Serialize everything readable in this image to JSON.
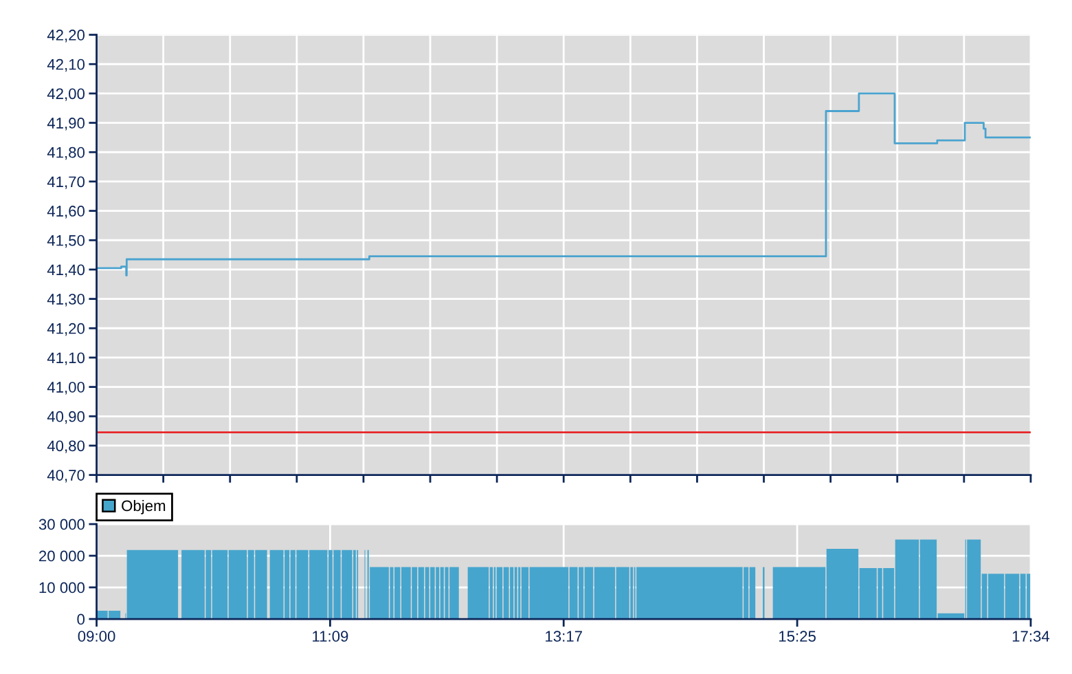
{
  "chart_data": [
    {
      "type": "step",
      "series": [
        {
          "color": "#4aa3cf",
          "x": [
            9.0,
            9.226,
            9.272,
            9.276,
            11.501,
            15.689,
            15.991,
            16.319,
            16.709,
            16.962,
            17.135,
            17.152,
            17.5667
          ],
          "values": [
            41.405,
            41.41,
            41.38,
            41.435,
            41.445,
            41.94,
            42.0,
            41.83,
            41.84,
            41.9,
            41.88,
            41.85,
            41.85
          ]
        }
      ],
      "xlim": [
        9.0,
        17.5667
      ],
      "xticks": [
        {
          "value": 9.0,
          "label": null
        },
        {
          "value": 9.6119,
          "label": null
        },
        {
          "value": 10.2238,
          "label": null
        },
        {
          "value": 10.8357,
          "label": null
        },
        {
          "value": 11.4476,
          "label": null
        },
        {
          "value": 12.0595,
          "label": null
        },
        {
          "value": 12.6714,
          "label": null
        },
        {
          "value": 13.2833,
          "label": null
        },
        {
          "value": 13.8952,
          "label": null
        },
        {
          "value": 14.5071,
          "label": null
        },
        {
          "value": 15.119,
          "label": null
        },
        {
          "value": 15.731,
          "label": null
        },
        {
          "value": 16.3429,
          "label": null
        },
        {
          "value": 16.9548,
          "label": null
        },
        {
          "value": 17.5667,
          "label": null
        }
      ],
      "ylim": [
        40.7,
        42.2
      ],
      "yticks": [
        {
          "value": 40.7,
          "label": "40,70"
        },
        {
          "value": 40.8,
          "label": "40,80"
        },
        {
          "value": 40.9,
          "label": "40,90"
        },
        {
          "value": 41.0,
          "label": "41,00"
        },
        {
          "value": 41.1,
          "label": "41,10"
        },
        {
          "value": 41.2,
          "label": "41,20"
        },
        {
          "value": 41.3,
          "label": "41,30"
        },
        {
          "value": 41.4,
          "label": "41,40"
        },
        {
          "value": 41.5,
          "label": "41,50"
        },
        {
          "value": 41.6,
          "label": "41,60"
        },
        {
          "value": 41.7,
          "label": "41,70"
        },
        {
          "value": 41.8,
          "label": "41,80"
        },
        {
          "value": 41.9,
          "label": "41,90"
        },
        {
          "value": 42.0,
          "label": "42,00"
        },
        {
          "value": 42.1,
          "label": "42,10"
        },
        {
          "value": 42.2,
          "label": "42,20"
        }
      ],
      "tick_labels": "y",
      "grid": true,
      "ref_lines": [
        {
          "axis": "y",
          "value": 40.845,
          "color": "#e8262a"
        }
      ]
    },
    {
      "type": "bar",
      "series": [
        {
          "name": "Objem",
          "color": "#46a5cd",
          "x": [
            9.053,
            9.1645,
            9.242,
            9.267,
            9.5125,
            9.763,
            9.885,
            10.0255,
            10.1305,
            10.2945,
            10.416,
            10.5085,
            10.576,
            10.6515,
            10.746,
            10.8005,
            10.887,
            11.034,
            11.145,
            11.2055,
            11.296,
            11.3655,
            11.3925,
            11.4285,
            11.4605,
            11.473,
            11.49,
            11.593,
            11.706,
            11.7585,
            11.838,
            11.9155,
            11.9765,
            12.0315,
            12.0805,
            12.1265,
            12.168,
            12.2105,
            12.2795,
            12.363,
            12.5,
            12.62,
            12.6515,
            12.6955,
            12.7565,
            12.807,
            12.845,
            12.8765,
            12.9285,
            13.149,
            13.374,
            13.443,
            13.5145,
            13.6595,
            13.825,
            13.907,
            13.935,
            14.4375,
            14.956,
            15.0145,
            15.0755,
            15.1175,
            15.1635,
            15.443,
            15.84,
            16.075,
            16.184,
            16.264,
            16.4325,
            16.6275,
            16.8355,
            16.97,
            17.0455,
            17.1425,
            17.2495,
            17.3965,
            17.4955,
            17.5458
          ],
          "values": [
            2600,
            2600,
            null,
            1800,
            21800,
            null,
            21800,
            21800,
            21800,
            21800,
            21800,
            21800,
            null,
            21800,
            21800,
            21800,
            21800,
            21800,
            21800,
            21800,
            21800,
            21800,
            21800,
            null,
            21800,
            null,
            21800,
            16400,
            16400,
            16400,
            16400,
            16400,
            16400,
            16400,
            16400,
            16400,
            16400,
            16400,
            16400,
            null,
            16400,
            16400,
            16400,
            16400,
            16400,
            16400,
            16400,
            16400,
            16400,
            16400,
            16400,
            16400,
            16400,
            16400,
            16400,
            16400,
            16400,
            16400,
            16400,
            16400,
            null,
            16400,
            null,
            16400,
            22200,
            16100,
            16100,
            16100,
            25100,
            25100,
            1800,
            25100,
            25100,
            14300,
            14300,
            14300,
            14300,
            14300
          ]
        }
      ],
      "xlim": [
        9.0,
        17.5667
      ],
      "xticks": [
        {
          "value": 9.0,
          "label": "09:00"
        },
        {
          "value": 11.1417,
          "label": "11:09"
        },
        {
          "value": 13.2833,
          "label": "13:17"
        },
        {
          "value": 15.425,
          "label": "15:25"
        },
        {
          "value": 17.5667,
          "label": "17:34"
        }
      ],
      "ylim": [
        0,
        30000
      ],
      "yticks": [
        0,
        {
          "value": 10000,
          "label": "10 000"
        },
        {
          "value": 20000,
          "label": "20 000"
        },
        {
          "value": 30000,
          "label": "30 000"
        }
      ],
      "grid": true,
      "legend": "top left"
    }
  ]
}
